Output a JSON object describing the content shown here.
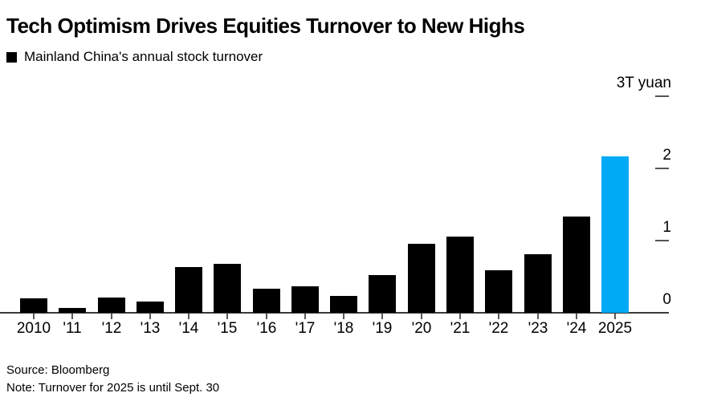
{
  "header": {
    "title": "Tech Optimism Drives Equities Turnover to New Highs",
    "legend_label": "Mainland China's annual stock turnover",
    "legend_swatch_color": "#000000"
  },
  "chart_data": {
    "type": "bar",
    "title": "Tech Optimism Drives Equities Turnover to New Highs",
    "subtitle": "Mainland China's annual stock turnover",
    "unit_label": "3T yuan",
    "categories": [
      "2010",
      "'11",
      "'12",
      "'13",
      "'14",
      "'15",
      "'16",
      "'17",
      "'18",
      "'19",
      "'20",
      "'21",
      "'22",
      "'23",
      "'24",
      "2025"
    ],
    "values": [
      0.2,
      0.07,
      0.21,
      0.16,
      0.63,
      0.68,
      0.33,
      0.37,
      0.23,
      0.52,
      0.96,
      1.06,
      0.59,
      0.81,
      1.33,
      2.17
    ],
    "ylim": [
      0,
      3
    ],
    "y_axis_labels": [
      {
        "value": 3,
        "label": "3T yuan",
        "dash": true
      },
      {
        "value": 2,
        "label": "2",
        "dash": true
      },
      {
        "value": 1,
        "label": "1",
        "dash": true
      },
      {
        "value": 0,
        "label": "0",
        "dash": false
      }
    ],
    "bar_color": "#000000",
    "highlight_color": "#00aaf5",
    "highlight_category": "2025",
    "axis_color": "#3a3a3a",
    "legend_position": "top-left",
    "grid": "off"
  },
  "footer": {
    "source": "Source: Bloomberg",
    "note": "Note: Turnover for 2025 is until Sept. 30"
  }
}
